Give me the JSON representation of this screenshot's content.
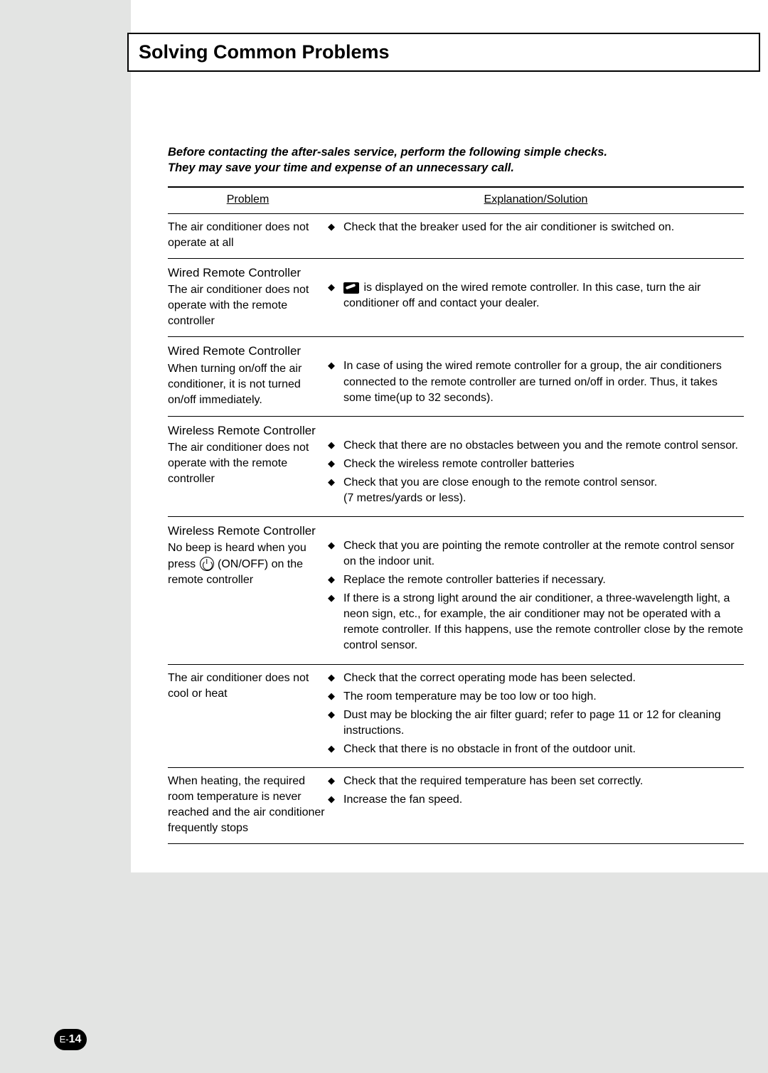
{
  "title": "Solving Common Problems",
  "intro_line1": "Before contacting the after-sales service, perform the following simple checks.",
  "intro_line2": "They may save your time and expense of an unnecessary call.",
  "head_problem": "Problem",
  "head_solution": "Explanation/Solution",
  "rows": [
    {
      "subhead": "",
      "problem": "The air conditioner does not operate at all",
      "solutions": [
        {
          "text": "Check that the breaker used for the air conditioner is switched on."
        }
      ]
    },
    {
      "subhead": "Wired Remote Controller",
      "problem": "The air conditioner does not operate with the remote controller",
      "solutions": [
        {
          "icon": "wrench",
          "text_after": " is displayed on the wired remote controller. In this case, turn the air conditioner off and contact your dealer."
        }
      ]
    },
    {
      "subhead": "Wired Remote Controller",
      "problem": "When turning on/off the air conditioner, it is not turned on/off immediately.",
      "solutions": [
        {
          "text": "In case of using the wired remote controller for a group, the air conditioners connected to the remote controller are turned on/off in order. Thus, it takes some time(up to 32 seconds)."
        }
      ]
    },
    {
      "subhead": "Wireless Remote Controller",
      "problem": "The air conditioner does not operate with the remote controller",
      "solutions": [
        {
          "text": "Check that there are no obstacles between you and the remote control sensor."
        },
        {
          "text": "Check the wireless remote controller batteries"
        },
        {
          "text": "Check that you are close enough to the remote control sensor.",
          "sub": "(7 metres/yards or less)."
        }
      ]
    },
    {
      "subhead": "Wireless Remote Controller",
      "problem_pre": "No beep is heard when you press ",
      "problem_icon": "power",
      "problem_post": " (ON/OFF) on the remote controller",
      "solutions": [
        {
          "text": "Check that you are pointing the remote controller at the remote control sensor on the indoor unit."
        },
        {
          "text": "Replace the remote controller batteries if necessary."
        },
        {
          "text": "If there is a strong light around the air conditioner, a three-wavelength light, a neon sign, etc., for example, the air conditioner may not be operated with a remote controller. If this happens, use the remote controller close by the remote control sensor."
        }
      ]
    },
    {
      "subhead": "",
      "problem": "The air conditioner does not cool or heat",
      "solutions": [
        {
          "text": "Check that the correct operating mode has been selected."
        },
        {
          "text": "The room temperature may be too low or too high."
        },
        {
          "text": "Dust may be blocking the air filter guard; refer to page 11 or 12 for cleaning instructions."
        },
        {
          "text": "Check that there is no obstacle in front of the outdoor unit."
        }
      ]
    },
    {
      "subhead": "",
      "problem": "When heating, the required room temperature is never reached and the air conditioner frequently stops",
      "solutions": [
        {
          "text": "Check that the required temperature has been set correctly."
        },
        {
          "text": "Increase the fan speed."
        }
      ]
    }
  ],
  "page_prefix": "E-",
  "page_number": "14",
  "colors": {
    "page_bg": "#e3e4e3",
    "content_bg": "#ffffff",
    "text": "#000000",
    "rule": "#000000"
  }
}
